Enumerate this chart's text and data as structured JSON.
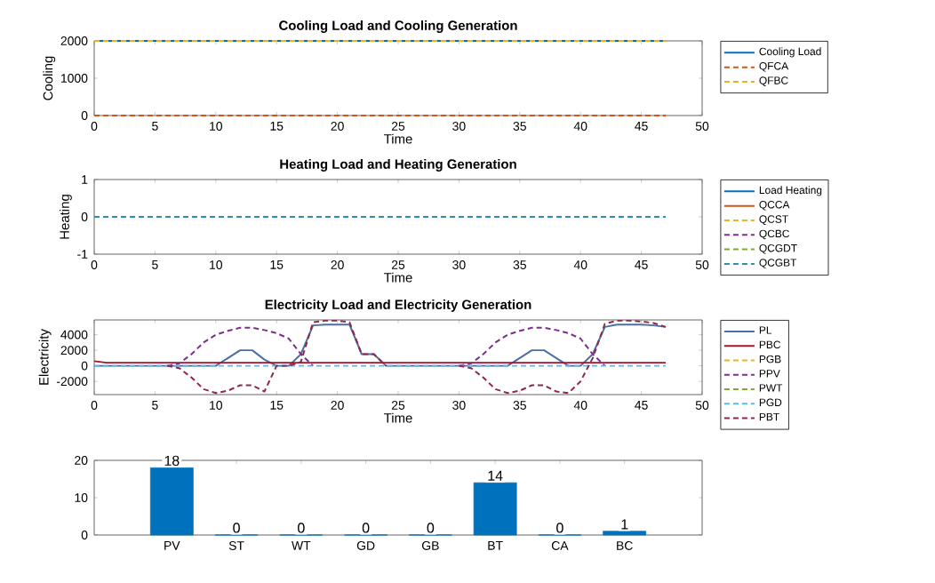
{
  "chart_data": [
    {
      "type": "line",
      "title": "Cooling Load and Cooling Generation",
      "xlabel": "Time",
      "ylabel": "Cooling",
      "x": [
        0,
        47
      ],
      "xlim": [
        0,
        50
      ],
      "ylim": [
        0,
        2000
      ],
      "xticks": [
        0,
        5,
        10,
        15,
        20,
        25,
        30,
        35,
        40,
        45,
        50
      ],
      "yticks": [
        0,
        1000,
        2000
      ],
      "legend": "right",
      "marker": "none",
      "series": [
        {
          "name": "Cooling Load",
          "color": "#0072bd",
          "line_style": "solid",
          "values": [
            2000,
            2000
          ]
        },
        {
          "name": "QFCA",
          "color": "#d95319",
          "line_style": "dashed",
          "values": [
            0,
            0
          ]
        },
        {
          "name": "QFBC",
          "color": "#edb120",
          "line_style": "dashed",
          "values": [
            2000,
            2000
          ]
        }
      ]
    },
    {
      "type": "line",
      "title": "Heating Load and Heating Generation",
      "xlabel": "Time",
      "ylabel": "Heating",
      "x": [
        0,
        47
      ],
      "xlim": [
        0,
        50
      ],
      "ylim": [
        -1,
        1
      ],
      "xticks": [
        0,
        5,
        10,
        15,
        20,
        25,
        30,
        35,
        40,
        45,
        50
      ],
      "yticks": [
        -1,
        0,
        1
      ],
      "legend": "right",
      "marker": "none",
      "series": [
        {
          "name": "Load Heating",
          "color": "#0072bd",
          "line_style": "solid",
          "values": [
            null,
            null
          ]
        },
        {
          "name": "QCCA",
          "color": "#d95319",
          "line_style": "solid",
          "values": [
            null,
            null
          ]
        },
        {
          "name": "QCST",
          "color": "#edb120",
          "line_style": "dashed",
          "values": [
            null,
            null
          ]
        },
        {
          "name": "QCBC",
          "color": "#7e2f8e",
          "line_style": "dashed",
          "values": [
            null,
            null
          ]
        },
        {
          "name": "QCGDT",
          "color": "#77ac30",
          "line_style": "dashed",
          "values": [
            null,
            null
          ]
        },
        {
          "name": "QCGBT",
          "color": "#2f8fa8",
          "line_style": "dashed",
          "values": [
            0,
            0
          ]
        }
      ]
    },
    {
      "type": "line",
      "title": "Electricity Load and Electricity Generation",
      "xlabel": "Time",
      "ylabel": "Electricity",
      "x": [
        0,
        1,
        2,
        3,
        4,
        5,
        6,
        7,
        8,
        9,
        10,
        11,
        12,
        13,
        14,
        15,
        16,
        17,
        18,
        19,
        20,
        21,
        22,
        23,
        24,
        25,
        26,
        27,
        28,
        29,
        30,
        31,
        32,
        33,
        34,
        35,
        36,
        37,
        38,
        39,
        40,
        41,
        42,
        43,
        44,
        45,
        46,
        47
      ],
      "xlim": [
        0,
        50
      ],
      "ylim": [
        -3700,
        5900
      ],
      "xticks": [
        0,
        5,
        10,
        15,
        20,
        25,
        30,
        35,
        40,
        45,
        50
      ],
      "yticks": [
        -2000,
        0,
        2000,
        4000
      ],
      "legend": "right",
      "marker": "none",
      "series": [
        {
          "name": "PL",
          "color": "#4a6fa5",
          "line_style": "solid",
          "values": [
            0,
            0,
            0,
            0,
            0,
            0,
            0,
            0,
            0,
            0,
            0,
            1000,
            2000,
            2000,
            800,
            0,
            0,
            1500,
            5200,
            5300,
            5300,
            5300,
            1500,
            1500,
            0,
            0,
            0,
            0,
            0,
            0,
            0,
            0,
            0,
            0,
            0,
            1000,
            2000,
            2000,
            1000,
            0,
            0,
            1500,
            5000,
            5300,
            5300,
            5300,
            5200,
            5000
          ]
        },
        {
          "name": "PBC",
          "color": "#a2142f",
          "line_style": "solid",
          "values": [
            600,
            400,
            400,
            400,
            400,
            400,
            400,
            400,
            400,
            400,
            400,
            400,
            400,
            400,
            400,
            400,
            400,
            400,
            400,
            400,
            400,
            400,
            400,
            400,
            400,
            400,
            400,
            400,
            400,
            400,
            400,
            400,
            400,
            400,
            400,
            400,
            400,
            400,
            400,
            400,
            400,
            400,
            400,
            400,
            400,
            400,
            400,
            400
          ]
        },
        {
          "name": "PGB",
          "color": "#edb120",
          "line_style": "dashed",
          "values": [
            null,
            null,
            null,
            null,
            null,
            null,
            null,
            null,
            null,
            null,
            null,
            null,
            null,
            null,
            null,
            null,
            null,
            null,
            null,
            null,
            null,
            null,
            null,
            null,
            null,
            null,
            null,
            null,
            null,
            null,
            null,
            null,
            null,
            null,
            null,
            null,
            null,
            null,
            null,
            null,
            null,
            null,
            null,
            null,
            null,
            null,
            null,
            null
          ]
        },
        {
          "name": "PPV",
          "color": "#7e2f8e",
          "line_style": "dashed",
          "values": [
            null,
            null,
            null,
            null,
            null,
            null,
            0,
            300,
            1500,
            3000,
            4000,
            4500,
            4900,
            4900,
            4600,
            4200,
            3500,
            1500,
            0,
            null,
            null,
            null,
            null,
            null,
            null,
            null,
            null,
            null,
            null,
            null,
            0,
            300,
            1500,
            3000,
            4000,
            4500,
            4900,
            4900,
            4600,
            4200,
            3500,
            1500,
            0,
            null,
            null,
            null,
            null,
            null
          ]
        },
        {
          "name": "PWT",
          "color": "#77ac30",
          "line_style": "dashed",
          "values": [
            null,
            null,
            null,
            null,
            null,
            null,
            null,
            null,
            null,
            null,
            null,
            null,
            null,
            null,
            null,
            null,
            null,
            null,
            null,
            null,
            null,
            null,
            null,
            null,
            null,
            null,
            null,
            null,
            null,
            null,
            null,
            null,
            null,
            null,
            null,
            null,
            null,
            null,
            null,
            null,
            null,
            null,
            null,
            null,
            null,
            null,
            null,
            null
          ]
        },
        {
          "name": "PGD",
          "color": "#4dbeee",
          "line_style": "dashed",
          "values": [
            0,
            0,
            0,
            0,
            0,
            0,
            0,
            0,
            0,
            0,
            0,
            0,
            0,
            0,
            0,
            0,
            0,
            0,
            0,
            0,
            0,
            0,
            0,
            0,
            0,
            0,
            0,
            0,
            0,
            0,
            0,
            0,
            0,
            0,
            0,
            0,
            0,
            0,
            0,
            0,
            0,
            0,
            0,
            0,
            0,
            0,
            0,
            0
          ]
        },
        {
          "name": "PBT",
          "color": "#8b2a4a",
          "line_style": "dashed",
          "values": [
            null,
            null,
            null,
            null,
            null,
            null,
            0,
            -300,
            -1500,
            -3000,
            -3500,
            -3200,
            -2500,
            -2500,
            -3300,
            0,
            0,
            500,
            5600,
            5800,
            5800,
            5600,
            1500,
            1500,
            0,
            null,
            null,
            null,
            null,
            null,
            0,
            -300,
            -1500,
            -3000,
            -3500,
            -3200,
            -2500,
            -2500,
            -3300,
            -3500,
            -2000,
            1000,
            5400,
            5800,
            5800,
            5700,
            5500,
            5000
          ]
        }
      ]
    },
    {
      "type": "bar",
      "categories": [
        "PV",
        "ST",
        "WT",
        "GD",
        "GB",
        "BT",
        "CA",
        "BC"
      ],
      "values": [
        18,
        0,
        0,
        0,
        0,
        14,
        0,
        1
      ],
      "color": "#0072bd",
      "data_labels": true,
      "ylim": [
        0,
        20
      ],
      "yticks": [
        0,
        10,
        20
      ]
    }
  ]
}
